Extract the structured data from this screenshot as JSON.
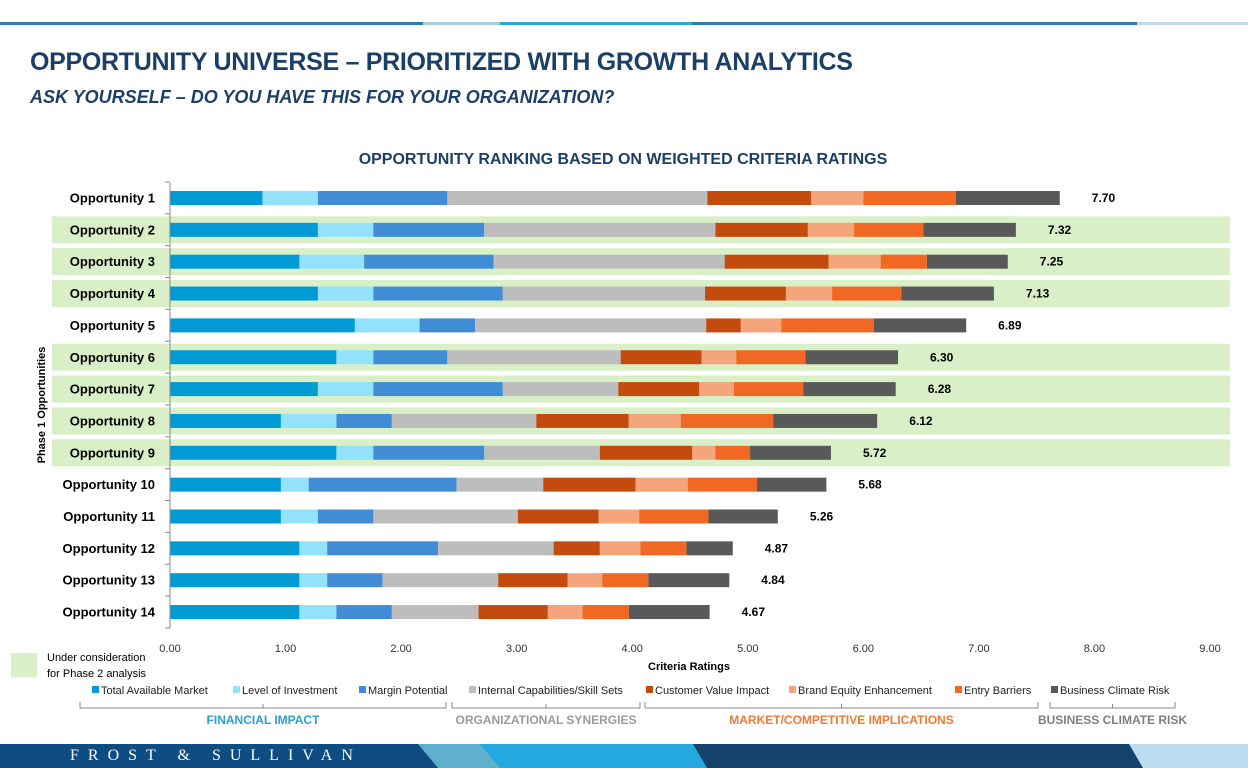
{
  "header": {
    "title": "OPPORTUNITY UNIVERSE – PRIORITIZED WITH GROWTH ANALYTICS",
    "subtitle": "ASK YOURSELF – DO YOU HAVE THIS FOR YOUR ORGANIZATION?"
  },
  "chart_data": {
    "type": "bar",
    "orientation": "horizontal",
    "stacked": true,
    "title": "OPPORTUNITY RANKING BASED ON WEIGHTED CRITERIA RATINGS",
    "xlabel": "Criteria Ratings",
    "ylabel": "Phase 1 Opportunities",
    "xlim": [
      0,
      9
    ],
    "xticks": [
      "0.00",
      "1.00",
      "2.00",
      "3.00",
      "4.00",
      "5.00",
      "6.00",
      "7.00",
      "8.00",
      "9.00"
    ],
    "grid": false,
    "legend_position": "bottom",
    "categories": [
      "Opportunity 1",
      "Opportunity 2",
      "Opportunity 3",
      "Opportunity 4",
      "Opportunity 5",
      "Opportunity 6",
      "Opportunity 7",
      "Opportunity 8",
      "Opportunity 9",
      "Opportunity 10",
      "Opportunity 11",
      "Opportunity 12",
      "Opportunity 13",
      "Opportunity 14"
    ],
    "totals": [
      "7.70",
      "7.32",
      "7.25",
      "7.13",
      "6.89",
      "6.30",
      "6.28",
      "6.12",
      "5.72",
      "5.68",
      "5.26",
      "4.87",
      "4.84",
      "4.67"
    ],
    "highlighted": [
      false,
      true,
      true,
      true,
      false,
      true,
      true,
      true,
      true,
      false,
      false,
      false,
      false,
      false
    ],
    "highlight_color": "#d9efc7",
    "highlight_legend": "Under consideration for Phase 2 analysis",
    "series": [
      {
        "name": "Total Available Market",
        "color": "#009ad4",
        "values": [
          0.8,
          1.28,
          1.12,
          1.28,
          1.6,
          1.44,
          1.28,
          0.96,
          1.44,
          0.96,
          0.96,
          1.12,
          1.12,
          1.12
        ]
      },
      {
        "name": "Level of Investment",
        "color": "#93e1fb",
        "values": [
          0.48,
          0.48,
          0.56,
          0.48,
          0.56,
          0.32,
          0.48,
          0.48,
          0.32,
          0.24,
          0.32,
          0.24,
          0.24,
          0.32
        ]
      },
      {
        "name": "Margin Potential",
        "color": "#418dd5",
        "values": [
          1.12,
          0.96,
          1.12,
          1.12,
          0.48,
          0.64,
          1.12,
          0.48,
          0.96,
          1.28,
          0.48,
          0.96,
          0.48,
          0.48
        ]
      },
      {
        "name": "Internal Capabilities/Skill Sets",
        "color": "#bdbdbd",
        "values": [
          2.25,
          2.0,
          2.0,
          1.75,
          2.0,
          1.5,
          1.0,
          1.25,
          1.0,
          0.75,
          1.25,
          1.0,
          1.0,
          0.75
        ]
      },
      {
        "name": "Customer Value Impact",
        "color": "#c44b0e",
        "values": [
          0.9,
          0.8,
          0.9,
          0.7,
          0.3,
          0.7,
          0.7,
          0.8,
          0.8,
          0.8,
          0.7,
          0.4,
          0.6,
          0.6
        ]
      },
      {
        "name": "Brand Equity Enhancement",
        "color": "#f5a57b",
        "values": [
          0.45,
          0.4,
          0.45,
          0.4,
          0.35,
          0.3,
          0.3,
          0.45,
          0.2,
          0.45,
          0.35,
          0.35,
          0.3,
          0.3
        ]
      },
      {
        "name": "Entry Barriers",
        "color": "#f06823",
        "values": [
          0.8,
          0.6,
          0.4,
          0.6,
          0.8,
          0.6,
          0.6,
          0.8,
          0.3,
          0.6,
          0.6,
          0.4,
          0.4,
          0.4
        ]
      },
      {
        "name": "Business Climate Risk",
        "color": "#595959",
        "values": [
          0.9,
          0.8,
          0.7,
          0.8,
          0.8,
          0.8,
          0.8,
          0.9,
          0.7,
          0.6,
          0.6,
          0.4,
          0.7,
          0.7
        ]
      }
    ],
    "groups": [
      {
        "label": "FINANCIAL IMPACT",
        "color": "#2b9fd3"
      },
      {
        "label": "ORGANIZATIONAL SYNERGIES",
        "color": "#9a9a9a"
      },
      {
        "label": "MARKET/COMPETITIVE IMPLICATIONS",
        "color": "#ee7a35"
      },
      {
        "label": "BUSINESS CLIMATE RISK",
        "color": "#7f7f7f"
      }
    ]
  },
  "footer": {
    "brand": "FROST & SULLIVAN"
  }
}
